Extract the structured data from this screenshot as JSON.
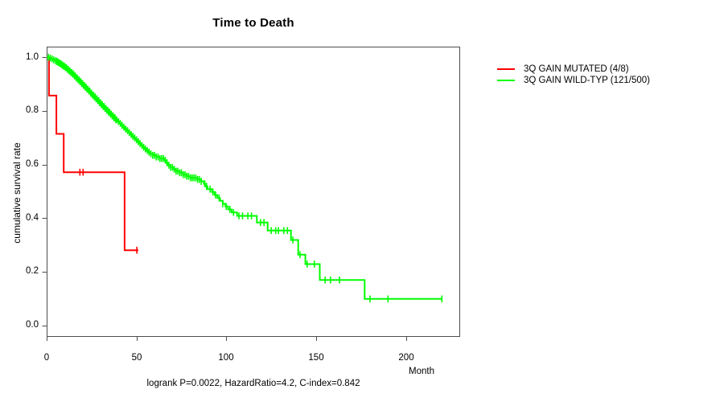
{
  "title": "Time to Death",
  "footer": "logrank P=0.0022, HazardRatio=4.2, C-index=0.842",
  "axes": {
    "x_label": "Month",
    "y_label": "cumulative survival rate",
    "x_ticks": [
      "0",
      "50",
      "100",
      "150",
      "200"
    ],
    "y_ticks": [
      "1.0",
      "0.8",
      "0.6",
      "0.4",
      "0.2",
      "0.0"
    ]
  },
  "chart_data": {
    "type": "line",
    "subtype": "kaplan-meier-step",
    "title": "Time to Death",
    "xlabel": "Month",
    "ylabel": "cumulative survival rate",
    "xlim": [
      0,
      230
    ],
    "ylim": [
      0.0,
      1.04
    ],
    "x_ticks": [
      0,
      50,
      100,
      150,
      200
    ],
    "y_ticks": [
      0.0,
      0.2,
      0.4,
      0.6,
      0.8,
      1.0
    ],
    "grid": false,
    "legend_position": "right-outside",
    "annotation": "logrank P=0.0022, HazardRatio=4.2, C-index=0.842",
    "series": [
      {
        "name": "3Q GAIN MUTATED (4/8)",
        "color": "#ff0000",
        "events": 4,
        "n": 8,
        "steps": [
          [
            0,
            1.0
          ],
          [
            1.3,
            0.857
          ],
          [
            5.4,
            0.714
          ],
          [
            9.5,
            0.571
          ],
          [
            43.4,
            0.28
          ]
        ],
        "end_month": 51,
        "censor_months": [
          18.5,
          20.3,
          50.2
        ]
      },
      {
        "name": "3Q GAIN WILD-TYP (121/500)",
        "color": "#00ff00",
        "events": 121,
        "n": 500,
        "steps": [
          [
            0,
            1.0
          ],
          [
            1.5,
            0.997
          ],
          [
            2.5,
            0.994
          ],
          [
            3.5,
            0.99
          ],
          [
            4.5,
            0.987
          ],
          [
            5.5,
            0.984
          ],
          [
            6.5,
            0.98
          ],
          [
            7.5,
            0.976
          ],
          [
            8.5,
            0.971
          ],
          [
            9.5,
            0.966
          ],
          [
            10.5,
            0.961
          ],
          [
            11.5,
            0.955
          ],
          [
            12.5,
            0.949
          ],
          [
            13.5,
            0.943
          ],
          [
            14.5,
            0.937
          ],
          [
            15.5,
            0.93
          ],
          [
            16.5,
            0.923
          ],
          [
            17.5,
            0.916
          ],
          [
            18.5,
            0.909
          ],
          [
            19.5,
            0.902
          ],
          [
            20.5,
            0.895
          ],
          [
            21.5,
            0.888
          ],
          [
            22.5,
            0.881
          ],
          [
            23.5,
            0.874
          ],
          [
            24.5,
            0.866
          ],
          [
            25.5,
            0.859
          ],
          [
            26.5,
            0.852
          ],
          [
            27.5,
            0.845
          ],
          [
            28.5,
            0.838
          ],
          [
            29.5,
            0.83
          ],
          [
            30.5,
            0.823
          ],
          [
            31.5,
            0.816
          ],
          [
            32.5,
            0.809
          ],
          [
            33.5,
            0.802
          ],
          [
            34.5,
            0.795
          ],
          [
            35.5,
            0.788
          ],
          [
            36.5,
            0.781
          ],
          [
            37.5,
            0.774
          ],
          [
            38.5,
            0.767
          ],
          [
            39.5,
            0.76
          ],
          [
            40.5,
            0.753
          ],
          [
            41.5,
            0.746
          ],
          [
            42.5,
            0.739
          ],
          [
            43.5,
            0.732
          ],
          [
            44.5,
            0.726
          ],
          [
            45.5,
            0.719
          ],
          [
            46.5,
            0.712
          ],
          [
            47.5,
            0.705
          ],
          [
            48.5,
            0.699
          ],
          [
            49.5,
            0.692
          ],
          [
            50.5,
            0.685
          ],
          [
            51.5,
            0.678
          ],
          [
            52.5,
            0.671
          ],
          [
            53.5,
            0.664
          ],
          [
            54.5,
            0.658
          ],
          [
            55.5,
            0.652
          ],
          [
            56.5,
            0.646
          ],
          [
            57.5,
            0.64
          ],
          [
            59,
            0.634
          ],
          [
            61,
            0.628
          ],
          [
            63,
            0.622
          ],
          [
            65.5,
            0.616
          ],
          [
            66.5,
            0.606
          ],
          [
            67.5,
            0.597
          ],
          [
            69,
            0.589
          ],
          [
            70.5,
            0.582
          ],
          [
            72,
            0.575
          ],
          [
            74,
            0.569
          ],
          [
            76,
            0.562
          ],
          [
            78,
            0.556
          ],
          [
            80,
            0.55
          ],
          [
            84,
            0.544
          ],
          [
            86,
            0.537
          ],
          [
            87.5,
            0.528
          ],
          [
            88.5,
            0.518
          ],
          [
            89.5,
            0.508
          ],
          [
            92,
            0.497
          ],
          [
            93.5,
            0.486
          ],
          [
            95,
            0.475
          ],
          [
            96.5,
            0.464
          ],
          [
            98,
            0.453
          ],
          [
            99.5,
            0.443
          ],
          [
            101,
            0.432
          ],
          [
            103,
            0.421
          ],
          [
            106,
            0.408
          ],
          [
            117,
            0.383
          ],
          [
            123,
            0.353
          ],
          [
            136,
            0.318
          ],
          [
            140,
            0.263
          ],
          [
            144,
            0.228
          ],
          [
            152,
            0.169
          ],
          [
            177,
            0.098
          ]
        ],
        "end_month": 220,
        "censor_months": [
          1,
          2,
          3,
          4,
          5,
          5.5,
          6,
          6.5,
          7,
          7.5,
          8,
          8.5,
          9,
          9.5,
          10,
          10.5,
          11,
          11.5,
          12,
          12.5,
          13,
          13.5,
          14,
          14.5,
          15,
          15.5,
          16,
          16.5,
          17,
          17.5,
          18,
          18.5,
          19,
          19.5,
          20,
          20.5,
          21,
          21.5,
          22,
          22.5,
          23,
          23.5,
          24,
          24.5,
          25,
          25.5,
          26,
          26.5,
          27,
          27.5,
          28,
          28.5,
          29,
          29.5,
          30,
          30.5,
          31,
          31.5,
          32,
          32.5,
          33,
          33.5,
          34,
          34.5,
          35,
          35.5,
          36,
          36.5,
          37,
          37.5,
          38,
          38.5,
          39,
          40,
          41,
          42,
          43,
          44,
          45,
          46,
          47,
          48,
          49,
          50,
          51,
          52,
          53,
          54,
          55,
          56,
          57,
          58,
          59,
          60,
          61,
          62,
          63,
          64,
          65,
          66,
          67,
          68,
          69,
          70,
          71,
          72,
          73,
          74,
          75,
          76,
          77,
          78,
          79,
          80,
          81,
          82,
          83,
          84,
          85,
          86,
          88,
          89,
          91,
          92.5,
          94,
          96,
          98,
          100,
          102,
          104,
          107,
          109,
          112,
          114,
          119,
          121,
          125,
          127.5,
          129,
          132,
          134,
          137,
          141,
          145,
          149,
          155,
          158,
          163,
          180,
          190,
          220
        ]
      }
    ]
  }
}
